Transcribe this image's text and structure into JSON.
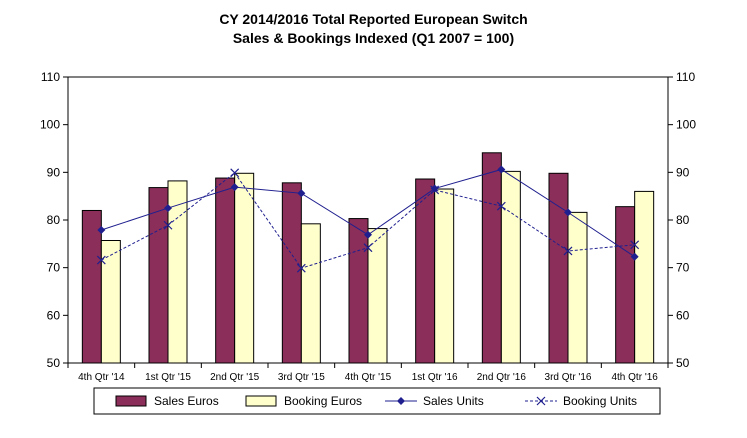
{
  "chart_data": {
    "type": "bar",
    "title_line1": "CY 2014/2016  Total Reported European Switch",
    "title_line2": "Sales & Bookings Indexed (Q1 2007 = 100)",
    "categories": [
      "4th Qtr '14",
      "1st Qtr '15",
      "2nd Qtr '15",
      "3rd Qtr '15",
      "4th Qtr '15",
      "1st Qtr '16",
      "2nd Qtr '16",
      "3rd Qtr '16",
      "4th Qtr '16"
    ],
    "ylim": [
      50,
      110
    ],
    "yticks": [
      "50",
      "60",
      "70",
      "80",
      "90",
      "100",
      "110"
    ],
    "grid": "none",
    "legend_position": "bottom",
    "series": [
      {
        "name": "Sales Euros",
        "kind": "bar",
        "color": "#8B2E5A",
        "values": [
          82.0,
          86.8,
          88.8,
          87.8,
          80.3,
          88.6,
          94.1,
          89.8,
          82.8
        ]
      },
      {
        "name": "Booking Euros",
        "kind": "bar",
        "color": "#FFFFCC",
        "values": [
          75.7,
          88.2,
          89.8,
          79.2,
          78.2,
          86.5,
          90.2,
          81.6,
          86.0
        ]
      },
      {
        "name": "Sales Units",
        "kind": "line",
        "marker": "diamond",
        "style": "solid",
        "color": "#1F1F8F",
        "values": [
          77.9,
          82.5,
          86.9,
          85.6,
          76.9,
          86.6,
          90.6,
          81.6,
          72.3
        ]
      },
      {
        "name": "Booking Units",
        "kind": "line",
        "marker": "x",
        "style": "dashed",
        "color": "#1F1F8F",
        "values": [
          71.6,
          78.9,
          89.9,
          69.9,
          74.2,
          86.3,
          82.9,
          73.5,
          74.8
        ]
      }
    ]
  }
}
